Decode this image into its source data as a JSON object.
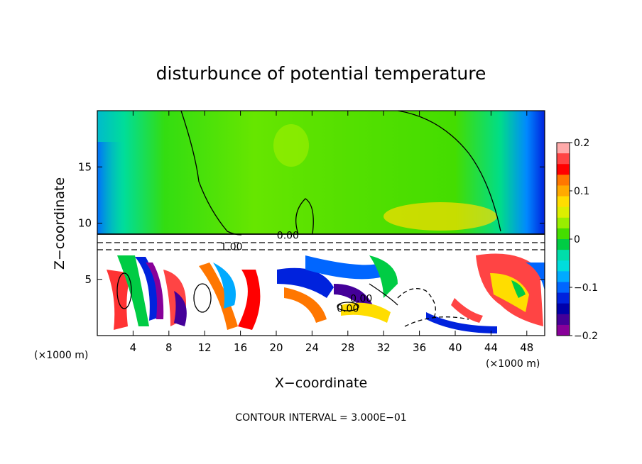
{
  "chart_data": {
    "type": "heatmap",
    "title": "disturbunce of potential temperature",
    "xlabel": "X−coordinate",
    "ylabel": "Z−coordinate",
    "x_unit_label_left": "(×1000 m)",
    "x_unit_label_right": "(×1000 m)",
    "footer": "CONTOUR INTERVAL = 3.000E−01",
    "xlim": [
      0,
      50
    ],
    "ylim": [
      0,
      20
    ],
    "x_ticks": [
      4,
      8,
      12,
      16,
      20,
      24,
      28,
      32,
      36,
      40,
      44,
      48
    ],
    "x_tick_labels": [
      "4",
      "8",
      "12",
      "16",
      "20",
      "24",
      "28",
      "32",
      "36",
      "40",
      "44",
      "48"
    ],
    "y_ticks": [
      5,
      10,
      15
    ],
    "y_tick_labels": [
      "5",
      "10",
      "15"
    ],
    "colorbar": {
      "min": -0.2,
      "max": 0.2,
      "ticks": [
        0.2,
        0.1,
        0,
        -0.1,
        -0.2
      ],
      "tick_labels": [
        "0.2",
        "0.1",
        "0",
        "−0.1",
        "−0.2"
      ],
      "colors": [
        "#ffaaaa",
        "#ff4444",
        "#ff0000",
        "#ff7700",
        "#ffaa00",
        "#ffdd00",
        "#ddee00",
        "#99ee00",
        "#44dd00",
        "#00cc44",
        "#00ddaa",
        "#00dddd",
        "#00aaff",
        "#0066ff",
        "#0022dd",
        "#0000aa",
        "#440099",
        "#880099"
      ]
    },
    "contour_labels": [
      {
        "text": "0.00",
        "x": 21.3,
        "z": 8.6
      },
      {
        "text": "1.00",
        "x": 15.0,
        "z": 7.6
      },
      {
        "text": "0.00",
        "x": 29.5,
        "z": 3.0
      },
      {
        "text": "0.00",
        "x": 28.0,
        "z": 2.1
      }
    ]
  }
}
